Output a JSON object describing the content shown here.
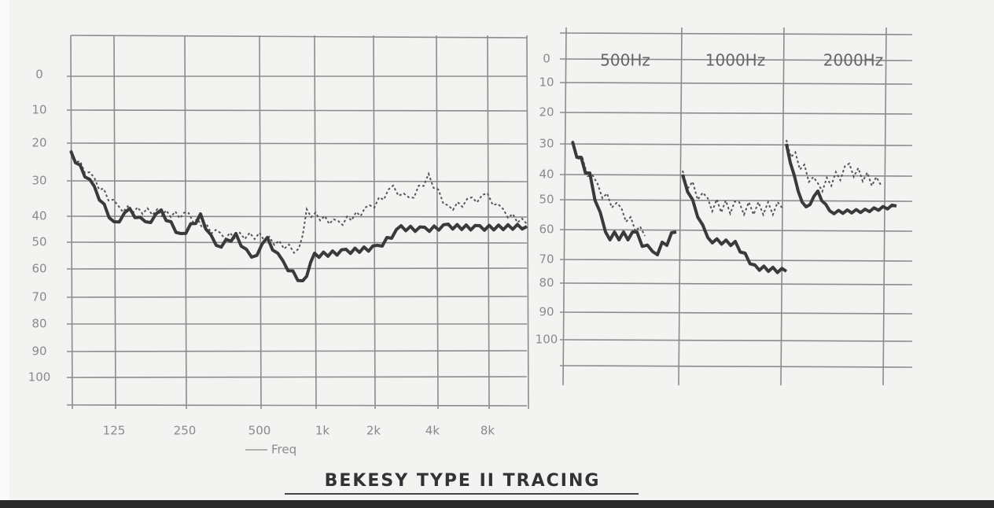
{
  "left_chart": {
    "y_labels": [
      "0",
      "10",
      "20",
      "30",
      "40",
      "50",
      "60",
      "70",
      "80",
      "90",
      "100"
    ],
    "x_labels": [
      "125",
      "250",
      "500",
      "1k",
      "2k",
      "4k",
      "8k"
    ],
    "x_axis_label": "Freq"
  },
  "right_chart": {
    "y_labels": [
      "0",
      "10",
      "20",
      "30",
      "40",
      "50",
      "60",
      "70",
      "80",
      "90",
      "100"
    ],
    "headers": [
      "500Hz",
      "1000Hz",
      "2000Hz"
    ]
  },
  "title": "BEKESY TYPE II TRACING"
}
